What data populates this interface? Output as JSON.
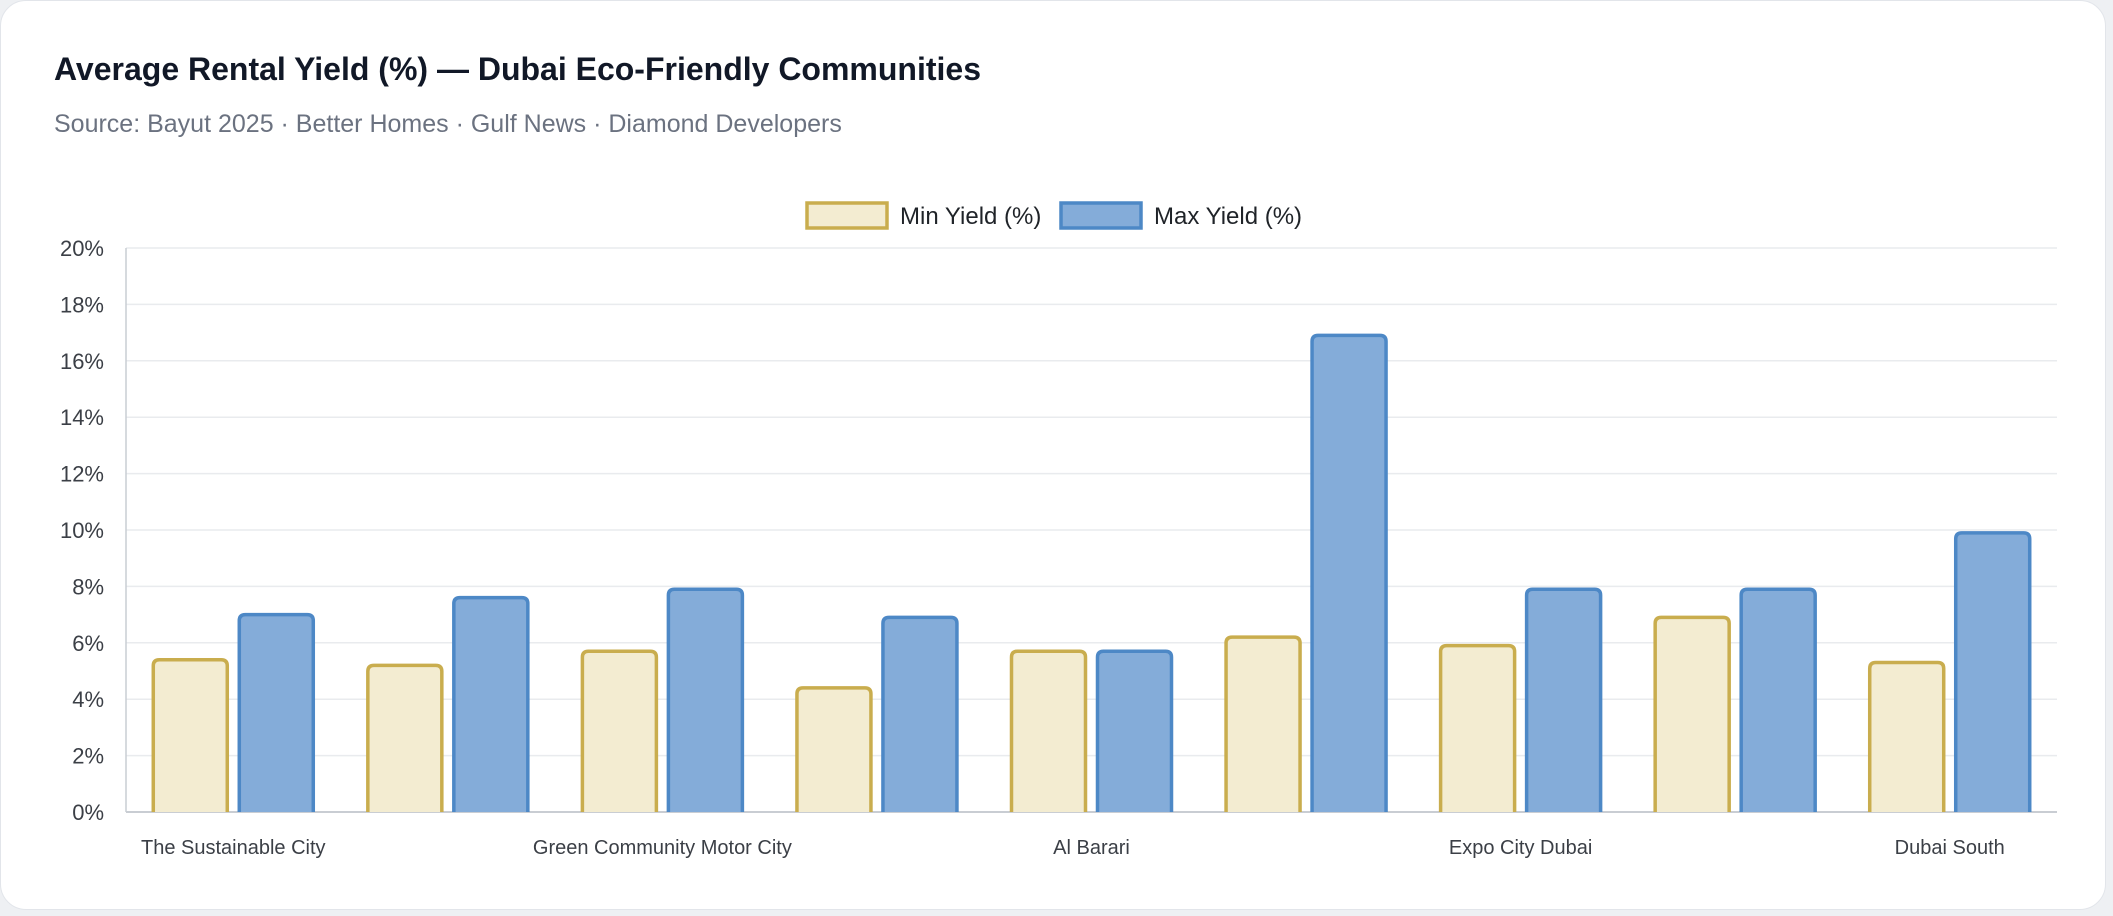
{
  "header": {
    "title": "Average Rental Yield (%) — Dubai Eco-Friendly Communities",
    "subtitle": "Source: Bayut 2025 · Better Homes · Gulf News · Diamond Developers"
  },
  "colors": {
    "min_fill": "#f3ecd1",
    "min_border": "#c9ad4e",
    "max_fill": "#84acd9",
    "max_border": "#4d88c6",
    "grid": "#e9ebee",
    "axis": "#c9cdd3",
    "tick_text": "#3b3f46"
  },
  "chart_data": {
    "type": "bar",
    "title": "Average Rental Yield (%) — Dubai Eco-Friendly Communities",
    "xlabel": "",
    "ylabel": "",
    "ylim": [
      0,
      20
    ],
    "y_tick_step": 2,
    "y_tick_suffix": "%",
    "grid": true,
    "legend_position": "top-center",
    "bar_groups": 9,
    "x_tick_labels": [
      "The Sustainable City",
      "Green Community Motor City",
      "Al Barari",
      "Expo City Dubai",
      "Dubai South"
    ],
    "x_tick_group_index": [
      0,
      2,
      4,
      6,
      8
    ],
    "series": [
      {
        "name": "Min Yield (%)",
        "values": [
          5.4,
          5.2,
          5.7,
          4.4,
          5.7,
          6.2,
          5.9,
          6.9,
          5.3
        ]
      },
      {
        "name": "Max Yield (%)",
        "values": [
          7.0,
          7.6,
          7.9,
          6.9,
          5.7,
          16.9,
          7.9,
          7.9,
          9.9
        ]
      }
    ]
  }
}
